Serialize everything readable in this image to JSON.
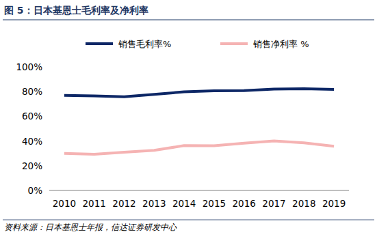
{
  "chart_data": {
    "type": "line",
    "title": "图 5：日本基恩士毛利率及净利率",
    "source": "资料来源：日本基恩士年报，信达证券研发中心",
    "categories": [
      "2010",
      "2011",
      "2012",
      "2013",
      "2014",
      "2015",
      "2016",
      "2017",
      "2018",
      "2019"
    ],
    "series": [
      {
        "name": "销售毛利率%",
        "color": "#0d2766",
        "values": [
          77,
          76.5,
          75.8,
          77.8,
          79.8,
          80.7,
          80.8,
          82,
          82.3,
          81.8
        ]
      },
      {
        "name": "销售净利率 %",
        "color": "#f5b3b3",
        "values": [
          30,
          29.3,
          31,
          32.5,
          36.3,
          36.2,
          38.2,
          40,
          38.5,
          35.8
        ]
      }
    ],
    "ylim": [
      0,
      100
    ],
    "yticks": [
      {
        "value": 0,
        "label": "0%"
      },
      {
        "value": 20,
        "label": "20%"
      },
      {
        "value": 40,
        "label": "40%"
      },
      {
        "value": 60,
        "label": "60%"
      },
      {
        "value": 80,
        "label": "80%"
      },
      {
        "value": 100,
        "label": "100%"
      }
    ],
    "grid": false,
    "legend": "top"
  }
}
